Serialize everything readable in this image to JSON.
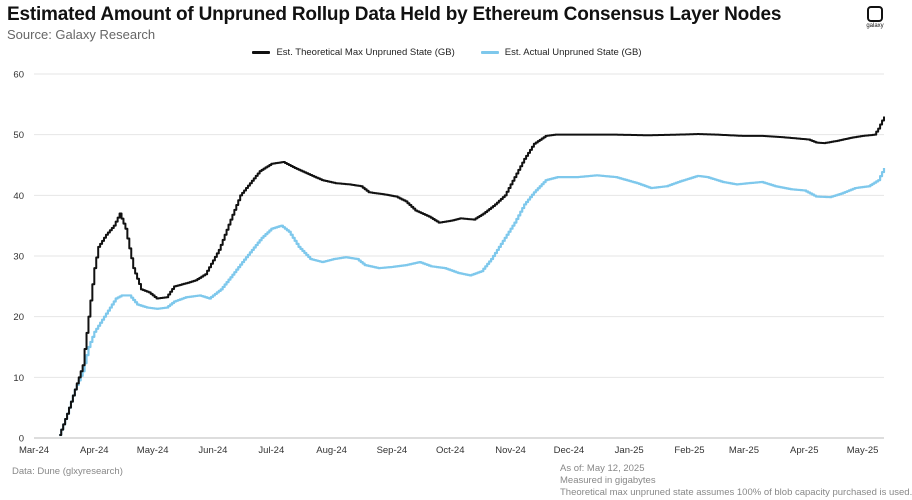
{
  "header": {
    "title": "Estimated Amount of Unpruned Rollup Data Held by Ethereum Consensus Layer Nodes",
    "subtitle": "Source: Galaxy Research",
    "logo_text": "galaxy"
  },
  "footer": {
    "data_source": "Data: Dune (glxyresearch)",
    "notes": [
      "As of: May 12, 2025",
      "Measured in gigabytes",
      "Theoretical max unpruned state assumes 100% of blob capacity purchased is used."
    ]
  },
  "colors": {
    "max_series": "#111111",
    "actual_series": "#7ec8ec",
    "grid": "#e6e6e6"
  },
  "chart_data": {
    "type": "line",
    "title": "Estimated Amount of Unpruned Rollup Data Held by Ethereum Consensus Layer Nodes",
    "xlabel": "",
    "ylabel": "",
    "ylim": [
      0,
      60
    ],
    "xlim": [
      "2024-03-13",
      "2025-05-12"
    ],
    "yticks": [
      0,
      10,
      20,
      30,
      40,
      50,
      60
    ],
    "xticks": [
      "Mar-24",
      "Apr-24",
      "May-24",
      "Jun-24",
      "Jul-24",
      "Aug-24",
      "Sep-24",
      "Oct-24",
      "Nov-24",
      "Dec-24",
      "Jan-25",
      "Feb-25",
      "Mar-25",
      "Apr-25",
      "May-25"
    ],
    "xtick_dates": [
      "2024-03-01",
      "2024-04-01",
      "2024-05-01",
      "2024-06-01",
      "2024-07-01",
      "2024-08-01",
      "2024-09-01",
      "2024-10-01",
      "2024-11-01",
      "2024-12-01",
      "2025-01-01",
      "2025-02-01",
      "2025-03-01",
      "2025-04-01",
      "2025-05-01"
    ],
    "grid": true,
    "legend": "top-center",
    "series": [
      {
        "name": "Est. Theoretical Max Unpruned State (GB)",
        "color": "#111111",
        "points": [
          [
            "2024-03-14",
            0.5
          ],
          [
            "2024-03-18",
            4
          ],
          [
            "2024-03-22",
            8
          ],
          [
            "2024-03-26",
            12
          ],
          [
            "2024-03-29",
            20
          ],
          [
            "2024-04-01",
            28
          ],
          [
            "2024-04-03",
            31.5
          ],
          [
            "2024-04-07",
            33.5
          ],
          [
            "2024-04-11",
            35
          ],
          [
            "2024-04-14",
            37
          ],
          [
            "2024-04-17",
            34.5
          ],
          [
            "2024-04-21",
            28
          ],
          [
            "2024-04-25",
            24.5
          ],
          [
            "2024-04-29",
            24
          ],
          [
            "2024-05-03",
            23
          ],
          [
            "2024-05-08",
            23.2
          ],
          [
            "2024-05-12",
            25
          ],
          [
            "2024-05-18",
            25.5
          ],
          [
            "2024-05-23",
            26
          ],
          [
            "2024-05-28",
            27
          ],
          [
            "2024-06-04",
            31
          ],
          [
            "2024-06-10",
            36
          ],
          [
            "2024-06-15",
            40
          ],
          [
            "2024-06-20",
            42
          ],
          [
            "2024-06-25",
            44
          ],
          [
            "2024-07-01",
            45.2
          ],
          [
            "2024-07-07",
            45.5
          ],
          [
            "2024-07-13",
            44.5
          ],
          [
            "2024-07-20",
            43.5
          ],
          [
            "2024-07-27",
            42.5
          ],
          [
            "2024-08-03",
            42
          ],
          [
            "2024-08-10",
            41.8
          ],
          [
            "2024-08-16",
            41.5
          ],
          [
            "2024-08-20",
            40.5
          ],
          [
            "2024-08-27",
            40.2
          ],
          [
            "2024-09-03",
            39.8
          ],
          [
            "2024-09-08",
            39
          ],
          [
            "2024-09-13",
            37.5
          ],
          [
            "2024-09-20",
            36.5
          ],
          [
            "2024-09-25",
            35.5
          ],
          [
            "2024-10-01",
            35.8
          ],
          [
            "2024-10-06",
            36.2
          ],
          [
            "2024-10-13",
            36
          ],
          [
            "2024-10-18",
            37
          ],
          [
            "2024-10-24",
            38.5
          ],
          [
            "2024-10-29",
            40
          ],
          [
            "2024-11-03",
            43
          ],
          [
            "2024-11-08",
            46
          ],
          [
            "2024-11-13",
            48.5
          ],
          [
            "2024-11-19",
            49.8
          ],
          [
            "2024-11-24",
            50
          ],
          [
            "2024-12-10",
            50
          ],
          [
            "2024-12-25",
            50
          ],
          [
            "2025-01-10",
            49.9
          ],
          [
            "2025-01-25",
            50
          ],
          [
            "2025-02-05",
            50.1
          ],
          [
            "2025-02-15",
            50
          ],
          [
            "2025-02-28",
            49.8
          ],
          [
            "2025-03-10",
            49.8
          ],
          [
            "2025-03-20",
            49.6
          ],
          [
            "2025-03-27",
            49.4
          ],
          [
            "2025-04-03",
            49.2
          ],
          [
            "2025-04-07",
            48.7
          ],
          [
            "2025-04-11",
            48.6
          ],
          [
            "2025-04-18",
            49
          ],
          [
            "2025-04-25",
            49.5
          ],
          [
            "2025-05-01",
            49.8
          ],
          [
            "2025-05-07",
            50
          ],
          [
            "2025-05-09",
            51
          ],
          [
            "2025-05-12",
            53
          ]
        ]
      },
      {
        "name": "Est. Actual Unpruned State (GB)",
        "color": "#7ec8ec",
        "points": [
          [
            "2024-03-14",
            0.5
          ],
          [
            "2024-03-18",
            4
          ],
          [
            "2024-03-22",
            8
          ],
          [
            "2024-03-26",
            11
          ],
          [
            "2024-03-29",
            15
          ],
          [
            "2024-04-01",
            17.5
          ],
          [
            "2024-04-04",
            19
          ],
          [
            "2024-04-08",
            21
          ],
          [
            "2024-04-12",
            23
          ],
          [
            "2024-04-15",
            23.5
          ],
          [
            "2024-04-19",
            23.5
          ],
          [
            "2024-04-23",
            22
          ],
          [
            "2024-04-28",
            21.5
          ],
          [
            "2024-05-03",
            21.3
          ],
          [
            "2024-05-08",
            21.5
          ],
          [
            "2024-05-12",
            22.5
          ],
          [
            "2024-05-18",
            23.2
          ],
          [
            "2024-05-25",
            23.5
          ],
          [
            "2024-05-30",
            23
          ],
          [
            "2024-06-05",
            24.5
          ],
          [
            "2024-06-10",
            26.5
          ],
          [
            "2024-06-16",
            29
          ],
          [
            "2024-06-21",
            31
          ],
          [
            "2024-06-26",
            33
          ],
          [
            "2024-07-01",
            34.5
          ],
          [
            "2024-07-06",
            35
          ],
          [
            "2024-07-10",
            34
          ],
          [
            "2024-07-15",
            31.5
          ],
          [
            "2024-07-21",
            29.5
          ],
          [
            "2024-07-27",
            29
          ],
          [
            "2024-08-02",
            29.5
          ],
          [
            "2024-08-08",
            29.8
          ],
          [
            "2024-08-14",
            29.5
          ],
          [
            "2024-08-18",
            28.5
          ],
          [
            "2024-08-25",
            28
          ],
          [
            "2024-09-01",
            28.2
          ],
          [
            "2024-09-08",
            28.5
          ],
          [
            "2024-09-15",
            29
          ],
          [
            "2024-09-21",
            28.3
          ],
          [
            "2024-09-28",
            28
          ],
          [
            "2024-10-05",
            27.2
          ],
          [
            "2024-10-11",
            26.8
          ],
          [
            "2024-10-17",
            27.5
          ],
          [
            "2024-10-22",
            29.5
          ],
          [
            "2024-10-28",
            32.5
          ],
          [
            "2024-11-03",
            35.5
          ],
          [
            "2024-11-08",
            38.5
          ],
          [
            "2024-11-13",
            40.5
          ],
          [
            "2024-11-19",
            42.5
          ],
          [
            "2024-11-25",
            43
          ],
          [
            "2024-12-05",
            43
          ],
          [
            "2024-12-15",
            43.3
          ],
          [
            "2024-12-25",
            43
          ],
          [
            "2025-01-05",
            42
          ],
          [
            "2025-01-12",
            41.2
          ],
          [
            "2025-01-20",
            41.5
          ],
          [
            "2025-01-27",
            42.3
          ],
          [
            "2025-02-05",
            43.2
          ],
          [
            "2025-02-10",
            43
          ],
          [
            "2025-02-18",
            42.2
          ],
          [
            "2025-02-25",
            41.8
          ],
          [
            "2025-03-03",
            42
          ],
          [
            "2025-03-10",
            42.2
          ],
          [
            "2025-03-17",
            41.5
          ],
          [
            "2025-03-25",
            41
          ],
          [
            "2025-04-01",
            40.8
          ],
          [
            "2025-04-07",
            39.8
          ],
          [
            "2025-04-14",
            39.7
          ],
          [
            "2025-04-20",
            40.3
          ],
          [
            "2025-04-27",
            41.2
          ],
          [
            "2025-05-04",
            41.5
          ],
          [
            "2025-05-09",
            42.5
          ],
          [
            "2025-05-12",
            44.5
          ]
        ]
      }
    ]
  }
}
